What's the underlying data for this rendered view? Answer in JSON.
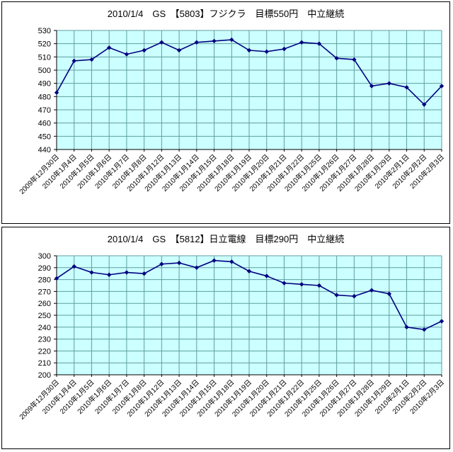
{
  "page": {
    "background": "#ffffff",
    "panel_border": "#000000"
  },
  "chart_data": [
    {
      "type": "line",
      "title": "2010/1/4　GS　【5803】フジクラ　目標550円　中立継続",
      "xlabel": "",
      "ylabel": "",
      "ylim": [
        440,
        530
      ],
      "yticks": [
        440,
        450,
        460,
        470,
        480,
        490,
        500,
        510,
        520,
        530
      ],
      "grid": true,
      "legend": "none",
      "marker": "diamond",
      "categories": [
        "2009年12月30日",
        "2010年1月4日",
        "2010年1月5日",
        "2010年1月6日",
        "2010年1月7日",
        "2010年1月8日",
        "2010年1月12日",
        "2010年1月13日",
        "2010年1月14日",
        "2010年1月15日",
        "2010年1月18日",
        "2010年1月19日",
        "2010年1月20日",
        "2010年1月21日",
        "2010年1月22日",
        "2010年1月25日",
        "2010年1月26日",
        "2010年1月27日",
        "2010年1月28日",
        "2010年1月29日",
        "2010年2月1日",
        "2010年2月2日",
        "2010年2月3日"
      ],
      "values": [
        483,
        507,
        508,
        517,
        512,
        515,
        521,
        515,
        521,
        522,
        523,
        515,
        514,
        516,
        521,
        520,
        509,
        508,
        488,
        490,
        487,
        474,
        488
      ],
      "colors": {
        "plot_bg": "#CCFFFF",
        "grid": "#5F9EA0",
        "series": "#000080",
        "axis": "#000000",
        "text": "#000000"
      }
    },
    {
      "type": "line",
      "title": "2010/1/4　GS　【5812】日立電線　目標290円　中立継続",
      "xlabel": "",
      "ylabel": "",
      "ylim": [
        200,
        300
      ],
      "yticks": [
        200,
        210,
        220,
        230,
        240,
        250,
        260,
        270,
        280,
        290,
        300
      ],
      "grid": true,
      "legend": "none",
      "marker": "diamond",
      "categories": [
        "2009年12月30日",
        "2010年1月4日",
        "2010年1月5日",
        "2010年1月6日",
        "2010年1月7日",
        "2010年1月8日",
        "2010年1月12日",
        "2010年1月13日",
        "2010年1月14日",
        "2010年1月15日",
        "2010年1月18日",
        "2010年1月19日",
        "2010年1月20日",
        "2010年1月21日",
        "2010年1月22日",
        "2010年1月25日",
        "2010年1月26日",
        "2010年1月27日",
        "2010年1月28日",
        "2010年1月29日",
        "2010年2月1日",
        "2010年2月2日",
        "2010年2月3日"
      ],
      "values": [
        281,
        291,
        286,
        284,
        286,
        285,
        293,
        294,
        290,
        296,
        295,
        287,
        283,
        277,
        276,
        275,
        267,
        266,
        271,
        268,
        240,
        238,
        245
      ],
      "colors": {
        "plot_bg": "#CCFFFF",
        "grid": "#5F9EA0",
        "series": "#000080",
        "axis": "#000000",
        "text": "#000000"
      }
    }
  ]
}
